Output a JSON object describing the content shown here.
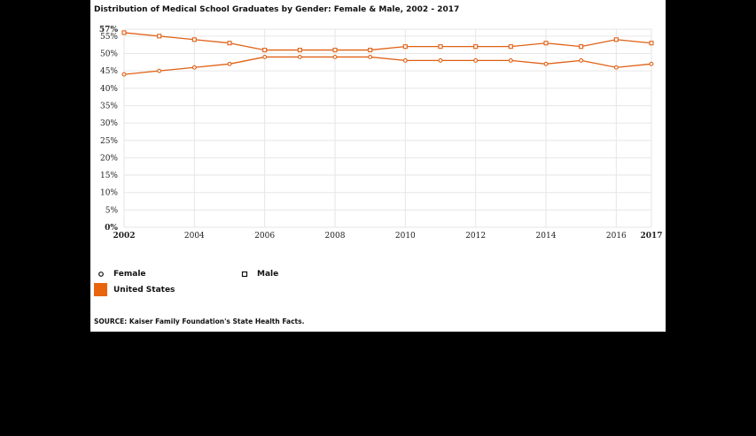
{
  "chart_data": {
    "type": "line",
    "title": "Distribution of Medical School Graduates by Gender: Female & Male, 2002 - 2017",
    "x": [
      2002,
      2003,
      2004,
      2005,
      2006,
      2007,
      2008,
      2009,
      2010,
      2011,
      2012,
      2013,
      2014,
      2015,
      2016,
      2017
    ],
    "x_ticks": [
      "2002",
      "2004",
      "2006",
      "2008",
      "2010",
      "2012",
      "2014",
      "2016",
      "2017"
    ],
    "y_ticks": [
      "0%",
      "5%",
      "10%",
      "15%",
      "20%",
      "25%",
      "30%",
      "35%",
      "40%",
      "45%",
      "50%",
      "55%",
      "57%"
    ],
    "ylim": [
      0,
      57
    ],
    "grid": true,
    "series": [
      {
        "name": "Female",
        "marker": "circle",
        "color": "#e06014",
        "values": [
          44,
          45,
          46,
          47,
          49,
          49,
          49,
          49,
          48,
          48,
          48,
          48,
          47,
          48,
          46,
          47
        ]
      },
      {
        "name": "Male",
        "marker": "square",
        "color": "#e06014",
        "values": [
          56,
          55,
          54,
          53,
          51,
          51,
          51,
          51,
          52,
          52,
          52,
          52,
          53,
          52,
          54,
          53
        ]
      }
    ],
    "legend": {
      "female_label": "Female",
      "male_label": "Male",
      "location_label": "United States",
      "location_color": "#e8650e",
      "position": "bottom-left"
    },
    "source": "SOURCE: Kaiser Family Foundation's State Health Facts."
  }
}
